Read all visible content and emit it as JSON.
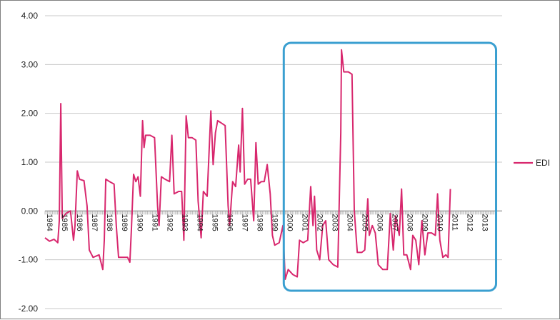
{
  "chart_data": {
    "type": "line",
    "title": "",
    "xlabel": "",
    "ylabel": "",
    "ylim": [
      -2.0,
      4.0
    ],
    "y_ticks": [
      "4.00",
      "3.00",
      "2.00",
      "1.00",
      "0.00",
      "-1.00",
      "-2.00"
    ],
    "x_tick_labels": [
      "1984",
      "1985",
      "1986",
      "1987",
      "1988",
      "1989",
      "1990",
      "1991",
      "1992",
      "1993",
      "1994",
      "1995",
      "1996",
      "1997",
      "1998",
      "1999",
      "2000",
      "2001",
      "2002",
      "2003",
      "2004",
      "2005",
      "2006",
      "2007",
      "2008",
      "2009",
      "2010",
      "2011",
      "2012",
      "2013"
    ],
    "grid": "horizontal",
    "legend_position": "right",
    "colors": {
      "series": "#d8286e",
      "highlight_box": "#3a9fd0",
      "grid": "#c8c8c8"
    },
    "highlight_box_x_range": [
      "2000",
      "2013"
    ],
    "series": [
      {
        "name": "EDI",
        "points": [
          [
            1984.0,
            -0.55
          ],
          [
            1984.3,
            -0.62
          ],
          [
            1984.6,
            -0.58
          ],
          [
            1984.85,
            -0.65
          ],
          [
            1984.95,
            -0.2
          ],
          [
            1985.05,
            2.2
          ],
          [
            1985.15,
            -0.15
          ],
          [
            1985.4,
            -0.05
          ],
          [
            1985.7,
            0.0
          ],
          [
            1985.9,
            -0.6
          ],
          [
            1986.0,
            -0.3
          ],
          [
            1986.15,
            0.82
          ],
          [
            1986.3,
            0.65
          ],
          [
            1986.6,
            0.62
          ],
          [
            1986.8,
            0.1
          ],
          [
            1986.95,
            -0.8
          ],
          [
            1987.2,
            -0.95
          ],
          [
            1987.6,
            -0.9
          ],
          [
            1987.85,
            -1.2
          ],
          [
            1987.95,
            -0.6
          ],
          [
            1988.05,
            0.65
          ],
          [
            1988.3,
            0.6
          ],
          [
            1988.6,
            0.55
          ],
          [
            1988.75,
            -0.3
          ],
          [
            1988.9,
            -0.95
          ],
          [
            1989.2,
            -0.95
          ],
          [
            1989.5,
            -0.95
          ],
          [
            1989.65,
            -1.05
          ],
          [
            1989.75,
            -0.4
          ],
          [
            1989.9,
            0.75
          ],
          [
            1990.05,
            0.6
          ],
          [
            1990.2,
            0.7
          ],
          [
            1990.35,
            0.3
          ],
          [
            1990.5,
            1.85
          ],
          [
            1990.6,
            1.3
          ],
          [
            1990.7,
            1.55
          ],
          [
            1991.0,
            1.55
          ],
          [
            1991.3,
            1.5
          ],
          [
            1991.5,
            0.1
          ],
          [
            1991.6,
            -0.3
          ],
          [
            1991.75,
            0.7
          ],
          [
            1992.0,
            0.65
          ],
          [
            1992.3,
            0.6
          ],
          [
            1992.45,
            1.55
          ],
          [
            1992.6,
            0.35
          ],
          [
            1992.9,
            0.4
          ],
          [
            1993.1,
            0.4
          ],
          [
            1993.25,
            -0.6
          ],
          [
            1993.4,
            1.95
          ],
          [
            1993.55,
            1.5
          ],
          [
            1993.8,
            1.5
          ],
          [
            1994.05,
            1.45
          ],
          [
            1994.2,
            0.2
          ],
          [
            1994.4,
            -0.55
          ],
          [
            1994.55,
            0.4
          ],
          [
            1994.8,
            0.3
          ],
          [
            1995.05,
            2.05
          ],
          [
            1995.2,
            0.95
          ],
          [
            1995.35,
            1.6
          ],
          [
            1995.5,
            1.85
          ],
          [
            1995.75,
            1.8
          ],
          [
            1996.0,
            1.75
          ],
          [
            1996.2,
            0.1
          ],
          [
            1996.3,
            -0.3
          ],
          [
            1996.5,
            0.6
          ],
          [
            1996.7,
            0.5
          ],
          [
            1996.9,
            1.35
          ],
          [
            1997.0,
            0.8
          ],
          [
            1997.15,
            2.1
          ],
          [
            1997.3,
            0.55
          ],
          [
            1997.5,
            0.65
          ],
          [
            1997.7,
            0.65
          ],
          [
            1997.9,
            -0.2
          ],
          [
            1998.05,
            1.4
          ],
          [
            1998.2,
            0.55
          ],
          [
            1998.4,
            0.6
          ],
          [
            1998.6,
            0.6
          ],
          [
            1998.8,
            0.95
          ],
          [
            1999.0,
            0.35
          ],
          [
            1999.15,
            -0.5
          ],
          [
            1999.3,
            -0.7
          ],
          [
            1999.6,
            -0.65
          ],
          [
            1999.85,
            -0.3
          ],
          [
            2000.0,
            -1.4
          ],
          [
            2000.2,
            -1.2
          ],
          [
            2000.5,
            -1.3
          ],
          [
            2000.8,
            -1.35
          ],
          [
            2000.95,
            -0.6
          ],
          [
            2001.2,
            -0.65
          ],
          [
            2001.5,
            -0.6
          ],
          [
            2001.7,
            0.5
          ],
          [
            2001.85,
            -0.3
          ],
          [
            2001.95,
            0.3
          ],
          [
            2002.1,
            -0.8
          ],
          [
            2002.3,
            -1.0
          ],
          [
            2002.5,
            -0.3
          ],
          [
            2002.7,
            -0.2
          ],
          [
            2002.9,
            -1.0
          ],
          [
            2003.2,
            -1.1
          ],
          [
            2003.5,
            -1.15
          ],
          [
            2003.7,
            1.6
          ],
          [
            2003.75,
            3.3
          ],
          [
            2003.9,
            2.85
          ],
          [
            2004.2,
            2.85
          ],
          [
            2004.45,
            2.8
          ],
          [
            2004.6,
            0.0
          ],
          [
            2004.8,
            -0.85
          ],
          [
            2005.1,
            -0.85
          ],
          [
            2005.3,
            -0.8
          ],
          [
            2005.5,
            0.25
          ],
          [
            2005.6,
            -0.5
          ],
          [
            2005.8,
            -0.3
          ],
          [
            2006.0,
            -0.45
          ],
          [
            2006.2,
            -1.1
          ],
          [
            2006.5,
            -1.2
          ],
          [
            2006.8,
            -1.2
          ],
          [
            2007.0,
            -0.05
          ],
          [
            2007.2,
            -0.8
          ],
          [
            2007.35,
            -0.1
          ],
          [
            2007.6,
            -0.5
          ],
          [
            2007.75,
            0.45
          ],
          [
            2007.9,
            -0.9
          ],
          [
            2008.1,
            -0.9
          ],
          [
            2008.35,
            -1.2
          ],
          [
            2008.5,
            -0.5
          ],
          [
            2008.7,
            -0.6
          ],
          [
            2008.9,
            -1.1
          ],
          [
            2009.1,
            -0.2
          ],
          [
            2009.3,
            -0.9
          ],
          [
            2009.5,
            -0.45
          ],
          [
            2009.75,
            -0.45
          ],
          [
            2010.0,
            -0.5
          ],
          [
            2010.15,
            0.35
          ],
          [
            2010.3,
            -0.6
          ],
          [
            2010.5,
            -0.95
          ],
          [
            2010.7,
            -0.9
          ],
          [
            2010.85,
            -0.95
          ],
          [
            2011.0,
            0.45
          ]
        ]
      }
    ]
  }
}
